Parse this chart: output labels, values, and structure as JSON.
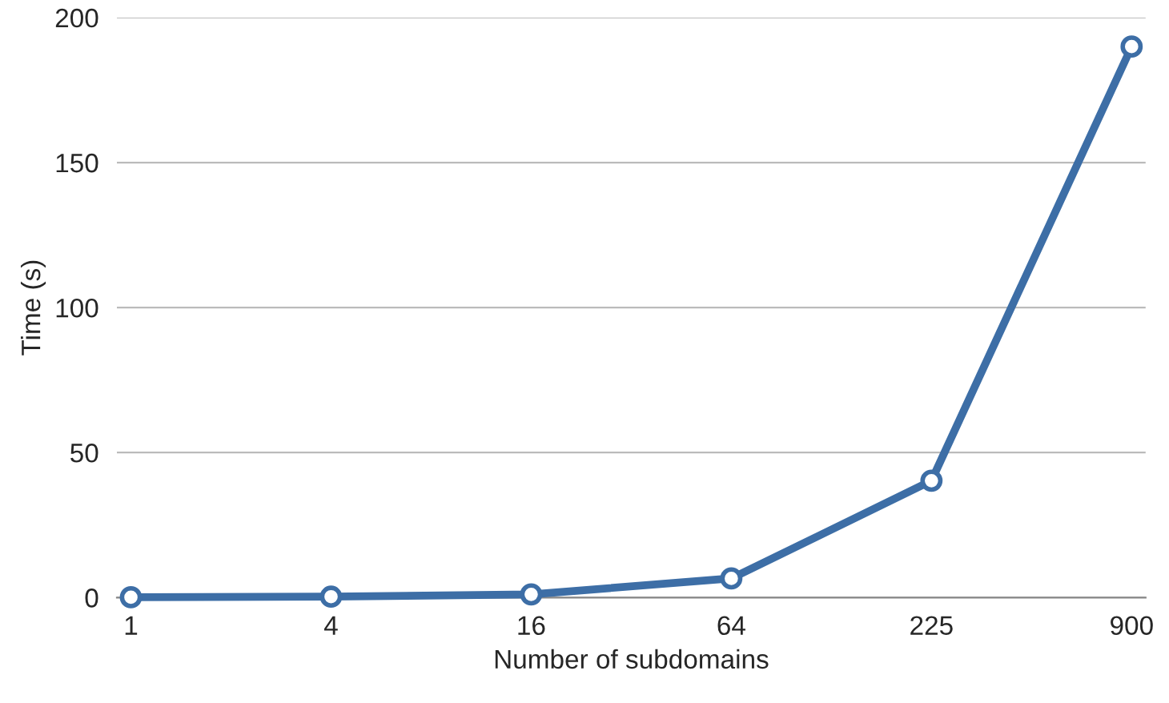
{
  "chart_data": {
    "type": "line",
    "xlabel": "Number of subdomains",
    "ylabel": "Time (s)",
    "categories": [
      "1",
      "4",
      "16",
      "64",
      "225",
      "900"
    ],
    "series": [
      {
        "color": "#3d6ea6",
        "values": [
          0.1,
          0.3,
          1.1,
          6.6,
          40.3,
          190
        ]
      }
    ],
    "ylim": [
      0,
      200
    ],
    "yticks": [
      0,
      50,
      100,
      150,
      200
    ],
    "grid": "y",
    "marker": "circle",
    "line_style": "solid",
    "legend": false
  }
}
